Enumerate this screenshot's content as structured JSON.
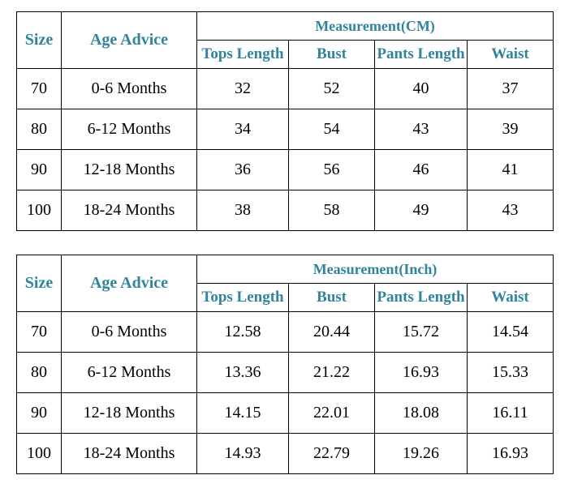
{
  "colors": {
    "header_text": "#31849B",
    "data_text": "#000000",
    "border": "#000000",
    "background": "#ffffff"
  },
  "tables": [
    {
      "measurement_label": "Measurement(CM)",
      "size_header": "Size",
      "age_header": "Age Advice",
      "sub_headers": [
        "Tops Length",
        "Bust",
        "Pants Length",
        "Waist"
      ],
      "rows": [
        {
          "size": "70",
          "age": "0-6 Months",
          "values": [
            "32",
            "52",
            "40",
            "37"
          ]
        },
        {
          "size": "80",
          "age": "6-12 Months",
          "values": [
            "34",
            "54",
            "43",
            "39"
          ]
        },
        {
          "size": "90",
          "age": "12-18 Months",
          "values": [
            "36",
            "56",
            "46",
            "41"
          ]
        },
        {
          "size": "100",
          "age": "18-24 Months",
          "values": [
            "38",
            "58",
            "49",
            "43"
          ]
        }
      ]
    },
    {
      "measurement_label": "Measurement(Inch)",
      "size_header": "Size",
      "age_header": "Age Advice",
      "sub_headers": [
        "Tops Length",
        "Bust",
        "Pants Length",
        "Waist"
      ],
      "rows": [
        {
          "size": "70",
          "age": "0-6 Months",
          "values": [
            "12.58",
            "20.44",
            "15.72",
            "14.54"
          ]
        },
        {
          "size": "80",
          "age": "6-12 Months",
          "values": [
            "13.36",
            "21.22",
            "16.93",
            "15.33"
          ]
        },
        {
          "size": "90",
          "age": "12-18 Months",
          "values": [
            "14.15",
            "22.01",
            "18.08",
            "16.11"
          ]
        },
        {
          "size": "100",
          "age": "18-24 Months",
          "values": [
            "14.93",
            "22.79",
            "19.26",
            "16.93"
          ]
        }
      ]
    }
  ]
}
